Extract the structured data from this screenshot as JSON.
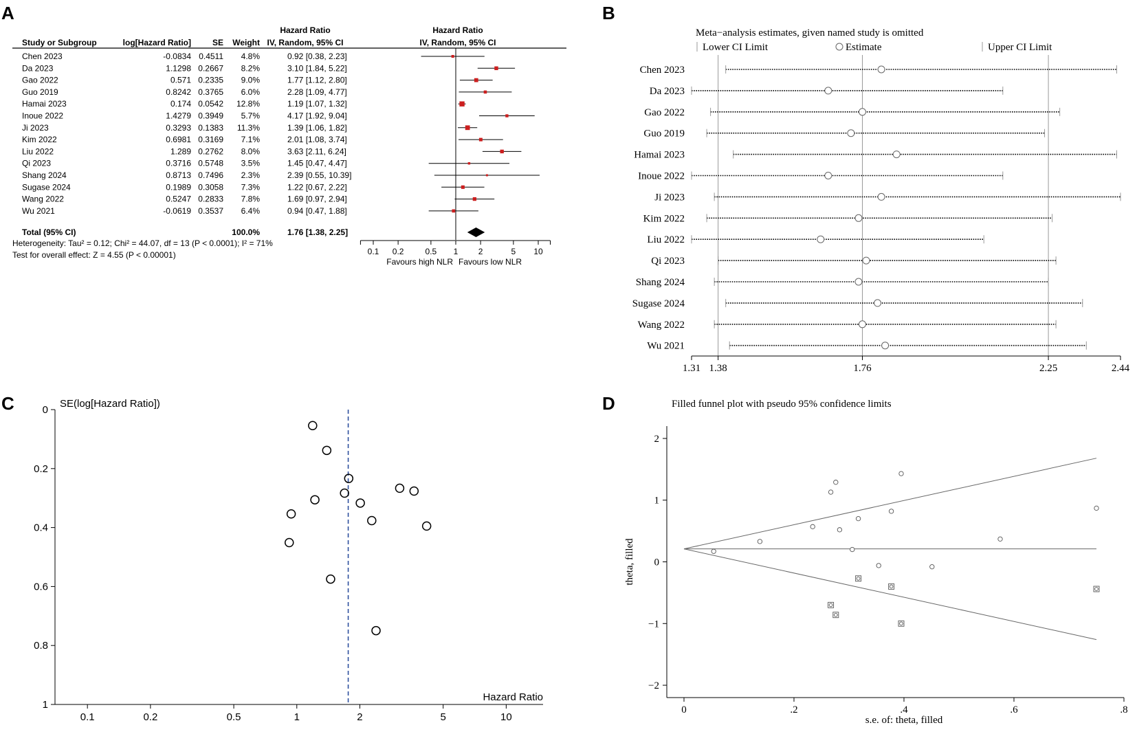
{
  "panels": {
    "a": "A",
    "b": "B",
    "c": "C",
    "d": "D"
  },
  "chart_data": [
    {
      "panel": "A",
      "type": "forest",
      "headers": {
        "study": "Study or Subgroup",
        "loghr": "log[Hazard Ratio]",
        "se": "SE",
        "weight": "Weight",
        "hr_title": "Hazard Ratio",
        "hr_method": "IV, Random, 95% CI",
        "plot_title": "Hazard Ratio",
        "plot_method": "IV, Random, 95% CI"
      },
      "studies": [
        {
          "name": "Chen 2023",
          "loghr": "-0.0834",
          "se": "0.4511",
          "weight": "4.8%",
          "ci_text": "0.92 [0.38, 2.23]",
          "hr": 0.92,
          "lo": 0.38,
          "hi": 2.23
        },
        {
          "name": "Da 2023",
          "loghr": "1.1298",
          "se": "0.2667",
          "weight": "8.2%",
          "ci_text": "3.10 [1.84, 5.22]",
          "hr": 3.1,
          "lo": 1.84,
          "hi": 5.22
        },
        {
          "name": "Gao 2022",
          "loghr": "0.571",
          "se": "0.2335",
          "weight": "9.0%",
          "ci_text": "1.77 [1.12, 2.80]",
          "hr": 1.77,
          "lo": 1.12,
          "hi": 2.8
        },
        {
          "name": "Guo 2019",
          "loghr": "0.8242",
          "se": "0.3765",
          "weight": "6.0%",
          "ci_text": "2.28 [1.09, 4.77]",
          "hr": 2.28,
          "lo": 1.09,
          "hi": 4.77
        },
        {
          "name": "Hamai 2023",
          "loghr": "0.174",
          "se": "0.0542",
          "weight": "12.8%",
          "ci_text": "1.19 [1.07, 1.32]",
          "hr": 1.19,
          "lo": 1.07,
          "hi": 1.32
        },
        {
          "name": "Inoue 2022",
          "loghr": "1.4279",
          "se": "0.3949",
          "weight": "5.7%",
          "ci_text": "4.17 [1.92, 9.04]",
          "hr": 4.17,
          "lo": 1.92,
          "hi": 9.04
        },
        {
          "name": "Ji 2023",
          "loghr": "0.3293",
          "se": "0.1383",
          "weight": "11.3%",
          "ci_text": "1.39 [1.06, 1.82]",
          "hr": 1.39,
          "lo": 1.06,
          "hi": 1.82
        },
        {
          "name": "Kim 2022",
          "loghr": "0.6981",
          "se": "0.3169",
          "weight": "7.1%",
          "ci_text": "2.01 [1.08, 3.74]",
          "hr": 2.01,
          "lo": 1.08,
          "hi": 3.74
        },
        {
          "name": "Liu 2022",
          "loghr": "1.289",
          "se": "0.2762",
          "weight": "8.0%",
          "ci_text": "3.63 [2.11, 6.24]",
          "hr": 3.63,
          "lo": 2.11,
          "hi": 6.24
        },
        {
          "name": "Qi 2023",
          "loghr": "0.3716",
          "se": "0.5748",
          "weight": "3.5%",
          "ci_text": "1.45 [0.47, 4.47]",
          "hr": 1.45,
          "lo": 0.47,
          "hi": 4.47
        },
        {
          "name": "Shang 2024",
          "loghr": "0.8713",
          "se": "0.7496",
          "weight": "2.3%",
          "ci_text": "2.39 [0.55, 10.39]",
          "hr": 2.39,
          "lo": 0.55,
          "hi": 10.39
        },
        {
          "name": "Sugase 2024",
          "loghr": "0.1989",
          "se": "0.3058",
          "weight": "7.3%",
          "ci_text": "1.22 [0.67, 2.22]",
          "hr": 1.22,
          "lo": 0.67,
          "hi": 2.22
        },
        {
          "name": "Wang 2022",
          "loghr": "0.5247",
          "se": "0.2833",
          "weight": "7.8%",
          "ci_text": "1.69 [0.97, 2.94]",
          "hr": 1.69,
          "lo": 0.97,
          "hi": 2.94
        },
        {
          "name": "Wu 2021",
          "loghr": "-0.0619",
          "se": "0.3537",
          "weight": "6.4%",
          "ci_text": "0.94 [0.47, 1.88]",
          "hr": 0.94,
          "lo": 0.47,
          "hi": 1.88
        }
      ],
      "total": {
        "label": "Total (95% CI)",
        "weight": "100.0%",
        "ci_text": "1.76 [1.38, 2.25]",
        "hr": 1.76,
        "lo": 1.38,
        "hi": 2.25
      },
      "heterogeneity": "Heterogeneity: Tau² = 0.12; Chi² = 44.07, df = 13 (P < 0.0001); I² = 71%",
      "overall_effect": "Test for overall effect: Z = 4.55 (P < 0.00001)",
      "axis_ticks": [
        "0.1",
        "0.2",
        "0.5",
        "1",
        "2",
        "5",
        "10"
      ],
      "xlim": [
        0.07,
        14
      ],
      "favours_left": "Favours high NLR",
      "favours_right": "Favours low NLR",
      "marker_color": "#cc1f1f"
    },
    {
      "panel": "B",
      "type": "sensitivity",
      "title": "Meta−analysis estimates, given named study is omitted",
      "legend": {
        "lower": "Lower CI Limit",
        "estimate": "Estimate",
        "upper": "Upper CI Limit"
      },
      "studies": [
        {
          "name": "Chen 2023",
          "lo": 1.4,
          "est": 1.81,
          "hi": 2.43
        },
        {
          "name": "Da 2023",
          "lo": 1.31,
          "est": 1.67,
          "hi": 2.13
        },
        {
          "name": "Gao 2022",
          "lo": 1.36,
          "est": 1.76,
          "hi": 2.28
        },
        {
          "name": "Guo 2019",
          "lo": 1.35,
          "est": 1.73,
          "hi": 2.24
        },
        {
          "name": "Hamai 2023",
          "lo": 1.42,
          "est": 1.85,
          "hi": 2.43
        },
        {
          "name": "Inoue 2022",
          "lo": 1.31,
          "est": 1.67,
          "hi": 2.13
        },
        {
          "name": "Ji 2023",
          "lo": 1.37,
          "est": 1.81,
          "hi": 2.44
        },
        {
          "name": "Kim 2022",
          "lo": 1.35,
          "est": 1.75,
          "hi": 2.26
        },
        {
          "name": "Liu 2022",
          "lo": 1.31,
          "est": 1.65,
          "hi": 2.08
        },
        {
          "name": "Qi 2023",
          "lo": 1.38,
          "est": 1.77,
          "hi": 2.27
        },
        {
          "name": "Shang 2024",
          "lo": 1.37,
          "est": 1.75,
          "hi": 2.25
        },
        {
          "name": "Sugase 2024",
          "lo": 1.4,
          "est": 1.8,
          "hi": 2.34
        },
        {
          "name": "Wang 2022",
          "lo": 1.37,
          "est": 1.76,
          "hi": 2.27
        },
        {
          "name": "Wu 2021",
          "lo": 1.41,
          "est": 1.82,
          "hi": 2.35
        }
      ],
      "ticks": [
        {
          "label": "1.31",
          "value": 1.31
        },
        {
          "label": "1.38",
          "value": 1.38
        },
        {
          "label": "1.76",
          "value": 1.76
        },
        {
          "label": "2.25",
          "value": 2.25
        },
        {
          "label": "2.44",
          "value": 2.44
        }
      ],
      "reference_lines": [
        1.38,
        1.76,
        2.25
      ]
    },
    {
      "panel": "C",
      "type": "scatter",
      "subtype": "funnel",
      "ylabel": "SE(log[Hazard Ratio])",
      "xlabel": "Hazard Ratio",
      "x_ticks": [
        "0.1",
        "0.2",
        "0.5",
        "1",
        "2",
        "5",
        "10"
      ],
      "y_ticks": [
        "0",
        "0.2",
        "0.4",
        "0.6",
        "0.8",
        "1"
      ],
      "xlim": [
        0.07,
        15
      ],
      "ylim": [
        0,
        1
      ],
      "pooled_hr": 1.76,
      "line_color": "#2d4f9e",
      "points": [
        {
          "hr": 0.92,
          "se": 0.4511
        },
        {
          "hr": 3.1,
          "se": 0.2667
        },
        {
          "hr": 1.77,
          "se": 0.2335
        },
        {
          "hr": 2.28,
          "se": 0.3765
        },
        {
          "hr": 1.19,
          "se": 0.0542
        },
        {
          "hr": 4.17,
          "se": 0.3949
        },
        {
          "hr": 1.39,
          "se": 0.1383
        },
        {
          "hr": 2.01,
          "se": 0.3169
        },
        {
          "hr": 3.63,
          "se": 0.2762
        },
        {
          "hr": 1.45,
          "se": 0.5748
        },
        {
          "hr": 2.39,
          "se": 0.7496
        },
        {
          "hr": 1.22,
          "se": 0.3058
        },
        {
          "hr": 1.69,
          "se": 0.2833
        },
        {
          "hr": 0.94,
          "se": 0.3537
        }
      ]
    },
    {
      "panel": "D",
      "type": "scatter",
      "subtype": "filled-funnel",
      "title": "Filled funnel plot with pseudo 95% confidence limits",
      "xlabel": "s.e. of: theta, filled",
      "ylabel": "theta, filled",
      "x_ticks": [
        {
          "label": "0",
          "value": 0
        },
        {
          "label": ".2",
          "value": 0.2
        },
        {
          "label": ".4",
          "value": 0.4
        },
        {
          "label": ".6",
          "value": 0.6
        },
        {
          "label": ".8",
          "value": 0.8
        }
      ],
      "y_ticks": [
        {
          "label": "2",
          "value": 2
        },
        {
          "label": "1",
          "value": 1
        },
        {
          "label": "0",
          "value": 0
        },
        {
          "label": "−1",
          "value": -1
        },
        {
          "label": "−2",
          "value": -2
        }
      ],
      "xlim": [
        0,
        0.8
      ],
      "ylim": [
        -2.2,
        2.2
      ],
      "pooled": 0.21,
      "limit_se": 0.75,
      "observed": [
        {
          "se": 0.054,
          "theta": 0.17
        },
        {
          "se": 0.138,
          "theta": 0.33
        },
        {
          "se": 0.234,
          "theta": 0.57
        },
        {
          "se": 0.267,
          "theta": 1.13
        },
        {
          "se": 0.276,
          "theta": 1.29
        },
        {
          "se": 0.283,
          "theta": 0.52
        },
        {
          "se": 0.306,
          "theta": 0.2
        },
        {
          "se": 0.317,
          "theta": 0.7
        },
        {
          "se": 0.354,
          "theta": -0.06
        },
        {
          "se": 0.377,
          "theta": 0.82
        },
        {
          "se": 0.395,
          "theta": 1.43
        },
        {
          "se": 0.451,
          "theta": -0.08
        },
        {
          "se": 0.575,
          "theta": 0.37
        },
        {
          "se": 0.75,
          "theta": 0.87
        }
      ],
      "filled": [
        {
          "se": 0.267,
          "theta": -0.7
        },
        {
          "se": 0.276,
          "theta": -0.86
        },
        {
          "se": 0.317,
          "theta": -0.27
        },
        {
          "se": 0.377,
          "theta": -0.4
        },
        {
          "se": 0.395,
          "theta": -1.0
        },
        {
          "se": 0.75,
          "theta": -0.44
        }
      ]
    }
  ]
}
